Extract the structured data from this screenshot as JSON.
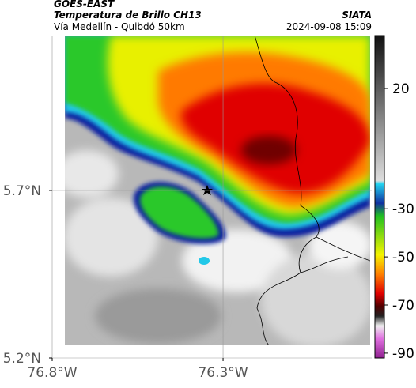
{
  "header": {
    "title": "GOES-EAST",
    "subtitle": "Temperatura de Brillo CH13",
    "region": "Vía Medellín - Quibdó 50km",
    "source": "SIATA",
    "datetime": "2024-09-08 15:09"
  },
  "map": {
    "xlim": [
      -76.8,
      -75.865
    ],
    "ylim": [
      5.2,
      6.162
    ],
    "xticks": [
      {
        "value": -76.8,
        "label": "76.8°W"
      },
      {
        "value": -76.3,
        "label": "76.3°W"
      }
    ],
    "yticks": [
      {
        "value": 5.7,
        "label": "5.7°N"
      },
      {
        "value": 5.2,
        "label": "5.2°N"
      }
    ]
  },
  "colorbar": {
    "range": [
      42,
      -92
    ],
    "ticks": [
      20,
      -30,
      -50,
      -70,
      -90
    ]
  }
}
